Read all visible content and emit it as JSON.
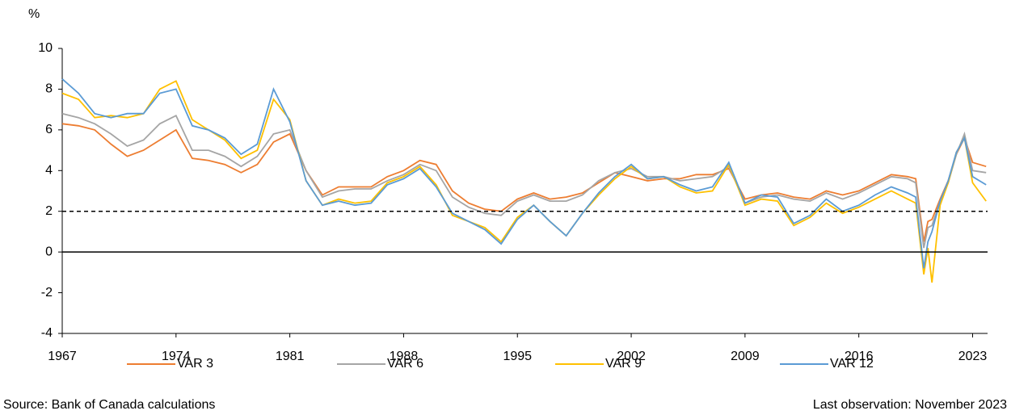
{
  "chart_data": {
    "type": "line",
    "y_label": "%",
    "source": "Source: Bank of Canada calculations",
    "note": "Last observation: November 2023",
    "x": [
      1967,
      1968,
      1969,
      1970,
      1971,
      1972,
      1973,
      1974,
      1975,
      1976,
      1977,
      1978,
      1979,
      1980,
      1981,
      1982,
      1983,
      1984,
      1985,
      1986,
      1987,
      1988,
      1989,
      1990,
      1991,
      1992,
      1993,
      1994,
      1995,
      1996,
      1997,
      1998,
      1999,
      2000,
      2001,
      2002,
      2003,
      2004,
      2005,
      2006,
      2007,
      2008,
      2009,
      2010,
      2011,
      2012,
      2013,
      2014,
      2015,
      2016,
      2017,
      2018,
      2019,
      2019.5,
      2020,
      2020.25,
      2020.5,
      2021,
      2021.5,
      2022,
      2022.5,
      2023,
      2023.83
    ],
    "series": [
      {
        "name": "VAR 3",
        "color": "#ED7D31",
        "values": [
          6.3,
          6.2,
          6.0,
          5.3,
          4.7,
          5.0,
          5.5,
          6.0,
          4.6,
          4.5,
          4.3,
          3.9,
          4.3,
          5.4,
          5.8,
          4.0,
          2.8,
          3.2,
          3.2,
          3.2,
          3.7,
          4.0,
          4.5,
          4.3,
          3.0,
          2.4,
          2.1,
          2.0,
          2.6,
          2.9,
          2.6,
          2.7,
          2.9,
          3.4,
          3.9,
          3.7,
          3.5,
          3.6,
          3.6,
          3.8,
          3.8,
          4.1,
          2.6,
          2.8,
          2.9,
          2.7,
          2.6,
          3.0,
          2.8,
          3.0,
          3.4,
          3.8,
          3.7,
          3.6,
          0.5,
          1.5,
          1.6,
          2.6,
          3.5,
          4.8,
          5.6,
          4.4,
          4.2
        ]
      },
      {
        "name": "VAR 6",
        "color": "#A5A5A5",
        "values": [
          6.8,
          6.6,
          6.3,
          5.8,
          5.2,
          5.5,
          6.3,
          6.7,
          5.0,
          5.0,
          4.7,
          4.2,
          4.7,
          5.8,
          6.0,
          4.0,
          2.7,
          3.0,
          3.1,
          3.1,
          3.5,
          3.8,
          4.3,
          4.0,
          2.7,
          2.2,
          1.9,
          1.8,
          2.5,
          2.8,
          2.5,
          2.5,
          2.8,
          3.5,
          3.9,
          4.1,
          3.7,
          3.7,
          3.5,
          3.6,
          3.7,
          4.2,
          2.4,
          2.7,
          2.8,
          2.6,
          2.5,
          2.9,
          2.6,
          2.9,
          3.3,
          3.7,
          3.6,
          3.4,
          0.2,
          1.2,
          1.3,
          2.5,
          3.4,
          4.8,
          5.8,
          4.0,
          3.9
        ]
      },
      {
        "name": "VAR 9",
        "color": "#FFC000",
        "values": [
          7.8,
          7.5,
          6.6,
          6.7,
          6.6,
          6.8,
          8.0,
          8.4,
          6.5,
          6.0,
          5.5,
          4.6,
          5.0,
          7.5,
          6.5,
          3.5,
          2.3,
          2.6,
          2.4,
          2.5,
          3.4,
          3.7,
          4.2,
          3.3,
          1.8,
          1.5,
          1.2,
          0.5,
          1.7,
          2.3,
          1.5,
          0.8,
          1.9,
          2.8,
          3.6,
          4.2,
          3.6,
          3.7,
          3.2,
          2.9,
          3.0,
          4.3,
          2.3,
          2.6,
          2.5,
          1.3,
          1.7,
          2.4,
          1.9,
          2.2,
          2.6,
          3.0,
          2.6,
          2.4,
          -1.1,
          0.2,
          -1.5,
          2.3,
          3.4,
          4.9,
          5.6,
          3.4,
          2.5
        ]
      },
      {
        "name": "VAR 12",
        "color": "#5B9BD5",
        "values": [
          8.5,
          7.8,
          6.8,
          6.6,
          6.8,
          6.8,
          7.8,
          8.0,
          6.2,
          6.0,
          5.6,
          4.8,
          5.3,
          8.0,
          6.4,
          3.5,
          2.3,
          2.5,
          2.3,
          2.4,
          3.3,
          3.6,
          4.1,
          3.2,
          1.9,
          1.5,
          1.1,
          0.4,
          1.6,
          2.3,
          1.5,
          0.8,
          1.9,
          2.9,
          3.7,
          4.3,
          3.6,
          3.7,
          3.3,
          3.0,
          3.2,
          4.4,
          2.4,
          2.8,
          2.7,
          1.4,
          1.8,
          2.6,
          2.0,
          2.3,
          2.8,
          3.2,
          2.9,
          2.7,
          -0.8,
          0.5,
          1.0,
          2.5,
          3.5,
          4.9,
          5.6,
          3.7,
          3.3
        ]
      }
    ],
    "xlim": [
      1967,
      2023.92
    ],
    "xticks": [
      1967,
      1974,
      1981,
      1988,
      1995,
      2002,
      2009,
      2016,
      2023
    ],
    "ylim": [
      -4,
      10
    ],
    "yticks": [
      -4,
      -2,
      0,
      2,
      4,
      6,
      8,
      10
    ],
    "target_line": 2,
    "legend": "bottom"
  }
}
